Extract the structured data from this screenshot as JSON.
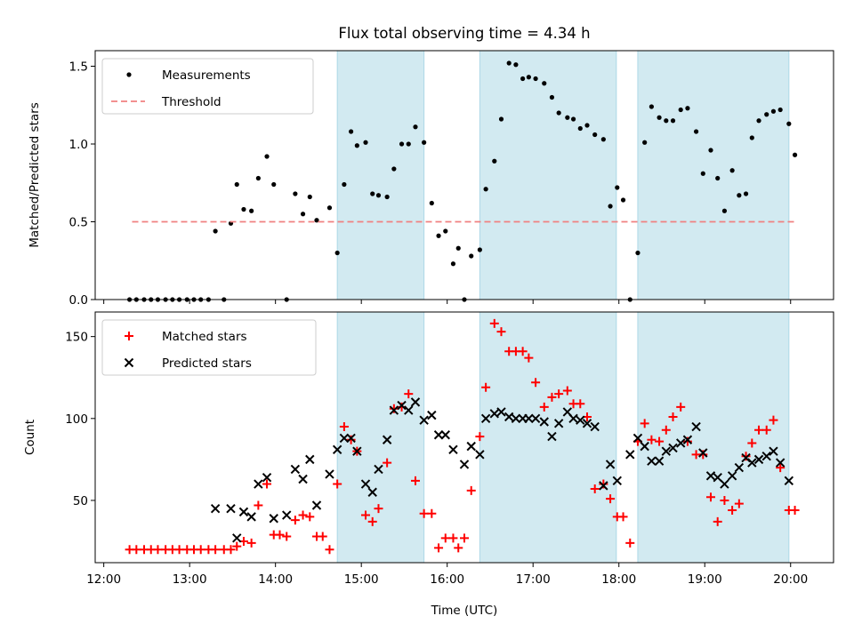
{
  "chart_data": {
    "title": "Flux total observing time = 4.34 h",
    "xlabel": "Time (UTC)",
    "x_unit": "hours UTC",
    "xlim": [
      11.9,
      20.5
    ],
    "x_tick_labels": [
      "12:00",
      "13:00",
      "14:00",
      "15:00",
      "16:00",
      "17:00",
      "18:00",
      "19:00",
      "20:00"
    ],
    "x_tick_values": [
      12,
      13,
      14,
      15,
      16,
      17,
      18,
      19,
      20
    ],
    "shaded_intervals": [
      [
        14.72,
        15.73
      ],
      [
        16.38,
        17.97
      ],
      [
        18.22,
        19.98
      ]
    ],
    "shade_color": "#add8e6",
    "panels": [
      {
        "type": "scatter",
        "ylabel": "Matched/Predicted stars",
        "ylim": [
          0,
          1.6
        ],
        "y_ticks": [
          "0.0",
          "0.5",
          "1.0",
          "1.5"
        ],
        "y_tick_values": [
          0.0,
          0.5,
          1.0,
          1.5
        ],
        "legend": "top-left",
        "series": [
          {
            "name": "Measurements",
            "marker": "dot",
            "color": "#000000",
            "x": [
              12.3,
              12.38,
              12.47,
              12.55,
              12.63,
              12.72,
              12.8,
              12.88,
              12.97,
              13.05,
              13.13,
              13.22,
              13.3,
              13.4,
              13.48,
              13.55,
              13.63,
              13.72,
              13.8,
              13.9,
              13.98,
              14.13,
              14.23,
              14.32,
              14.4,
              14.48,
              14.63,
              14.72,
              14.8,
              14.88,
              14.95,
              15.05,
              15.13,
              15.2,
              15.3,
              15.38,
              15.47,
              15.55,
              15.63,
              15.73,
              15.82,
              15.9,
              15.98,
              16.07,
              16.13,
              16.2,
              16.28,
              16.38,
              16.45,
              16.55,
              16.63,
              16.72,
              16.8,
              16.88,
              16.95,
              17.03,
              17.13,
              17.22,
              17.3,
              17.4,
              17.47,
              17.55,
              17.63,
              17.72,
              17.82,
              17.9,
              17.98,
              18.05,
              18.13,
              18.22,
              18.3,
              18.38,
              18.47,
              18.55,
              18.63,
              18.72,
              18.8,
              18.9,
              18.98,
              19.07,
              19.15,
              19.23,
              19.32,
              19.4,
              19.48,
              19.55,
              19.63,
              19.72,
              19.8,
              19.88,
              19.98,
              20.05
            ],
            "y": [
              0,
              0,
              0,
              0,
              0,
              0,
              0,
              0,
              0,
              0,
              0,
              0,
              0.44,
              0,
              0.49,
              0.74,
              0.58,
              0.57,
              0.78,
              0.92,
              0.74,
              0,
              0.68,
              0.55,
              0.66,
              0.51,
              0.59,
              0.3,
              0.74,
              1.08,
              0.99,
              1.01,
              0.68,
              0.67,
              0.66,
              0.84,
              1.0,
              1.0,
              1.11,
              1.01,
              0.62,
              0.41,
              0.44,
              0.23,
              0.33,
              0,
              0.28,
              0.32,
              0.71,
              0.89,
              1.16,
              1.52,
              1.51,
              1.42,
              1.43,
              1.42,
              1.39,
              1.3,
              1.2,
              1.17,
              1.16,
              1.1,
              1.12,
              1.06,
              1.03,
              0.6,
              0.72,
              0.64,
              0,
              0.3,
              1.01,
              1.24,
              1.17,
              1.15,
              1.15,
              1.22,
              1.23,
              1.08,
              0.81,
              0.96,
              0.78,
              0.57,
              0.83,
              0.67,
              0.68,
              1.04,
              1.15,
              1.19,
              1.21,
              1.22,
              1.13,
              0.93
            ]
          },
          {
            "name": "Threshold",
            "kind": "dashed-line",
            "color": "#f08080",
            "x": [
              12.33,
              20.08
            ],
            "y": [
              0.5,
              0.5
            ]
          }
        ]
      },
      {
        "type": "scatter",
        "ylabel": "Count",
        "ylim": [
          12,
          165
        ],
        "y_ticks": [
          "50",
          "100",
          "150"
        ],
        "y_tick_values": [
          50,
          100,
          150
        ],
        "legend": "top-left",
        "series": [
          {
            "name": "Matched stars",
            "marker": "plus",
            "color": "#ff0000",
            "x": [
              12.3,
              12.38,
              12.47,
              12.55,
              12.63,
              12.72,
              12.8,
              12.88,
              12.97,
              13.05,
              13.13,
              13.22,
              13.3,
              13.4,
              13.48,
              13.55,
              13.63,
              13.72,
              13.8,
              13.9,
              13.98,
              14.05,
              14.13,
              14.23,
              14.32,
              14.4,
              14.48,
              14.55,
              14.63,
              14.72,
              14.8,
              14.88,
              14.95,
              15.05,
              15.13,
              15.2,
              15.3,
              15.38,
              15.47,
              15.55,
              15.63,
              15.73,
              15.82,
              15.9,
              15.98,
              16.07,
              16.13,
              16.2,
              16.28,
              16.38,
              16.45,
              16.55,
              16.63,
              16.72,
              16.8,
              16.88,
              16.95,
              17.03,
              17.13,
              17.22,
              17.3,
              17.4,
              17.47,
              17.55,
              17.63,
              17.72,
              17.82,
              17.9,
              17.98,
              18.05,
              18.13,
              18.22,
              18.3,
              18.38,
              18.47,
              18.55,
              18.63,
              18.72,
              18.8,
              18.9,
              18.98,
              19.07,
              19.15,
              19.23,
              19.32,
              19.4,
              19.48,
              19.55,
              19.63,
              19.72,
              19.8,
              19.88,
              19.98,
              20.05
            ],
            "y": [
              20,
              20,
              20,
              20,
              20,
              20,
              20,
              20,
              20,
              20,
              20,
              20,
              20,
              20,
              20,
              22,
              25,
              24,
              47,
              60,
              29,
              29,
              28,
              38,
              41,
              40,
              28,
              28,
              20,
              60,
              95,
              87,
              80,
              41,
              37,
              45,
              73,
              106,
              107,
              115,
              62,
              42,
              42,
              21,
              27,
              27,
              21,
              27,
              56,
              89,
              119,
              158,
              153,
              141,
              141,
              141,
              137,
              122,
              107,
              113,
              115,
              117,
              109,
              109,
              101,
              57,
              60,
              51,
              40,
              40,
              24,
              86,
              97,
              87,
              86,
              93,
              101,
              107,
              86,
              78,
              78,
              52,
              37,
              50,
              44,
              48,
              77,
              85,
              93,
              93,
              99,
              70,
              44,
              44
            ]
          },
          {
            "name": "Predicted stars",
            "marker": "x",
            "color": "#000000",
            "x": [
              13.3,
              13.48,
              13.55,
              13.63,
              13.72,
              13.8,
              13.9,
              13.98,
              14.13,
              14.23,
              14.32,
              14.4,
              14.48,
              14.63,
              14.72,
              14.8,
              14.88,
              14.95,
              15.05,
              15.13,
              15.2,
              15.3,
              15.38,
              15.47,
              15.55,
              15.63,
              15.73,
              15.82,
              15.9,
              15.98,
              16.07,
              16.2,
              16.28,
              16.38,
              16.45,
              16.55,
              16.63,
              16.72,
              16.8,
              16.88,
              16.95,
              17.03,
              17.13,
              17.22,
              17.3,
              17.4,
              17.47,
              17.55,
              17.63,
              17.72,
              17.82,
              17.9,
              17.98,
              18.13,
              18.22,
              18.3,
              18.38,
              18.47,
              18.55,
              18.63,
              18.72,
              18.8,
              18.9,
              18.98,
              19.07,
              19.15,
              19.23,
              19.32,
              19.4,
              19.48,
              19.55,
              19.63,
              19.72,
              19.8,
              19.88,
              19.98
            ],
            "y": [
              45,
              45,
              27,
              43,
              40,
              60,
              64,
              39,
              41,
              69,
              63,
              75,
              47,
              66,
              81,
              88,
              88,
              80,
              60,
              55,
              69,
              87,
              105,
              108,
              105,
              110,
              99,
              102,
              90,
              90,
              81,
              72,
              83,
              78,
              100,
              103,
              104,
              101,
              100,
              100,
              100,
              100,
              98,
              89,
              97,
              104,
              100,
              99,
              97,
              95,
              59,
              72,
              62,
              78,
              88,
              83,
              74,
              74,
              80,
              82,
              85,
              87,
              95,
              79,
              65,
              64,
              60,
              65,
              70,
              76,
              73,
              75,
              77,
              80,
              73,
              62
            ]
          }
        ]
      }
    ]
  }
}
